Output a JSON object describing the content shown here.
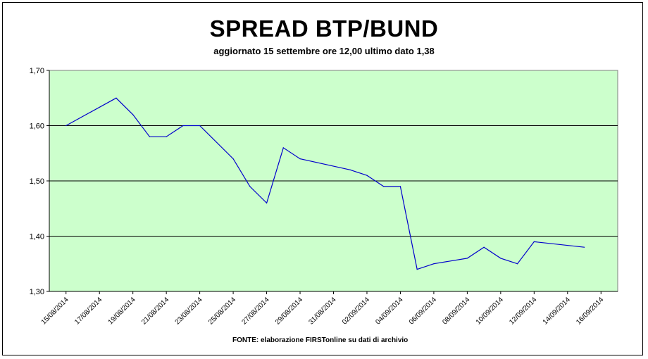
{
  "chart_data": {
    "type": "line",
    "title": "SPREAD BTP/BUND",
    "subtitle": "aggiornato 15 settembre ore 12,00 ultimo dato 1,38",
    "source": "FONTE: elaborazione FIRSTonline su dati di archivio",
    "ylim": [
      1.3,
      1.7
    ],
    "yticks": [
      "1,70",
      "1,60",
      "1,50",
      "1,40",
      "1,30"
    ],
    "ytick_values": [
      1.7,
      1.6,
      1.5,
      1.4,
      1.3
    ],
    "xticks": [
      "15/08/2014",
      "17/08/2014",
      "19/08/2014",
      "21/08/2014",
      "23/08/2014",
      "25/08/2014",
      "27/08/2014",
      "29/08/2014",
      "31/08/2014",
      "02/09/2014",
      "04/09/2014",
      "06/09/2014",
      "08/09/2014",
      "10/09/2014",
      "12/09/2014",
      "14/09/2014",
      "16/09/2014"
    ],
    "plot_background": "#ccffcc",
    "line_color": "#0000cc",
    "grid": true,
    "series": [
      {
        "dates": [
          "2014-08-15",
          "2014-08-18",
          "2014-08-19",
          "2014-08-20",
          "2014-08-21",
          "2014-08-22",
          "2014-08-23",
          "2014-08-25",
          "2014-08-26",
          "2014-08-27",
          "2014-08-28",
          "2014-08-29",
          "2014-09-01",
          "2014-09-02",
          "2014-09-03",
          "2014-09-04",
          "2014-09-05",
          "2014-09-06",
          "2014-09-08",
          "2014-09-09",
          "2014-09-10",
          "2014-09-11",
          "2014-09-12",
          "2014-09-15"
        ],
        "values": [
          1.6,
          1.65,
          1.62,
          1.58,
          1.58,
          1.6,
          1.6,
          1.54,
          1.49,
          1.46,
          1.56,
          1.54,
          1.52,
          1.51,
          1.49,
          1.49,
          1.34,
          1.35,
          1.36,
          1.38,
          1.36,
          1.35,
          1.39,
          1.38
        ]
      }
    ]
  }
}
